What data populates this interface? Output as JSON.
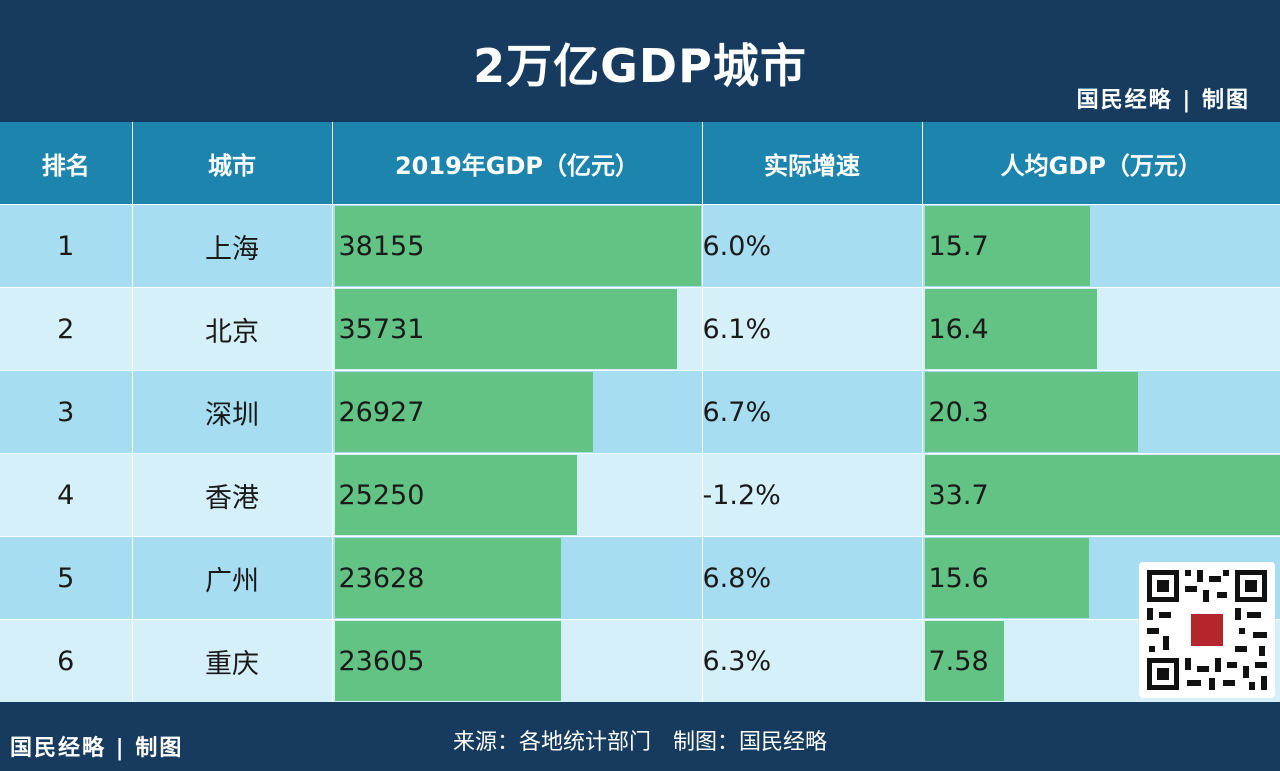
{
  "title": "2万亿GDP城市",
  "brand": "国民经略 | 制图",
  "headers": {
    "rank": "排名",
    "city": "城市",
    "gdp": "2019年GDP（亿元）",
    "growth": "实际增速",
    "per_capita": "人均GDP（万元）"
  },
  "rows": [
    {
      "rank": "1",
      "city": "上海",
      "gdp": "38155",
      "growth": "6.0%",
      "per_capita": "15.7"
    },
    {
      "rank": "2",
      "city": "北京",
      "gdp": "35731",
      "growth": "6.1%",
      "per_capita": "16.4"
    },
    {
      "rank": "3",
      "city": "深圳",
      "gdp": "26927",
      "growth": "6.7%",
      "per_capita": "20.3"
    },
    {
      "rank": "4",
      "city": "香港",
      "gdp": "25250",
      "growth": "-1.2%",
      "per_capita": "33.7"
    },
    {
      "rank": "5",
      "city": "广州",
      "gdp": "23628",
      "growth": "6.8%",
      "per_capita": "15.6"
    },
    {
      "rank": "6",
      "city": "重庆",
      "gdp": "23605",
      "growth": "6.3%",
      "per_capita": "7.58"
    }
  ],
  "chart_data": {
    "type": "table",
    "title": "2万亿GDP城市",
    "columns": [
      "排名",
      "城市",
      "2019年GDP（亿元）",
      "实际增速",
      "人均GDP（万元）"
    ],
    "categories": [
      "上海",
      "北京",
      "深圳",
      "香港",
      "广州",
      "重庆"
    ],
    "series": [
      {
        "name": "2019年GDP（亿元）",
        "values": [
          38155,
          35731,
          26927,
          25250,
          23628,
          23605
        ]
      },
      {
        "name": "实际增速",
        "values": [
          6.0,
          6.1,
          6.7,
          -1.2,
          6.8,
          6.3
        ]
      },
      {
        "name": "人均GDP（万元）",
        "values": [
          15.7,
          16.4,
          20.3,
          33.7,
          15.6,
          7.58
        ]
      }
    ]
  },
  "footer": {
    "brand": "国民经略 | 制图",
    "source": "来源：各地统计部门　制图：国民经略"
  },
  "colors": {
    "background": "#163b5f",
    "header": "#1c84ad",
    "row_odd": "#a7ddf0",
    "row_even": "#d6f0fa",
    "bar": "#63c384"
  },
  "icons": {
    "qr": "qr-code-icon"
  }
}
